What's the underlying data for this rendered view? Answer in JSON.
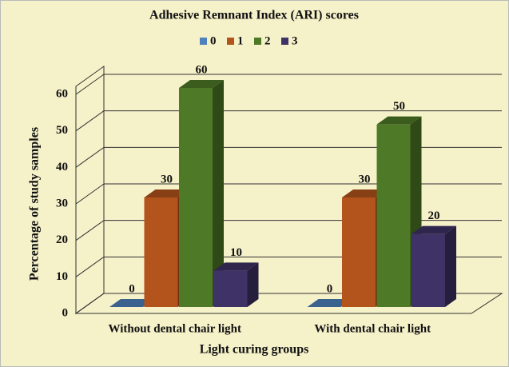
{
  "chart_data": {
    "type": "bar3d",
    "title": "Adhesive Remnant Index (ARI) scores",
    "x_label": "Light curing groups",
    "y_label": "Percentage of study samples",
    "categories": [
      "Without dental chair light",
      "With dental chair light"
    ],
    "series": [
      {
        "name": "0",
        "color": "#4f81bd",
        "values": [
          0,
          0
        ]
      },
      {
        "name": "1",
        "color": "#b4541d",
        "values": [
          30,
          30
        ]
      },
      {
        "name": "2",
        "color": "#4e7a27",
        "values": [
          60,
          50
        ]
      },
      {
        "name": "3",
        "color": "#3e3266",
        "values": [
          10,
          20
        ]
      }
    ],
    "ylim": [
      0,
      60
    ],
    "yticks": [
      0,
      10,
      20,
      30,
      40,
      50,
      60
    ],
    "grid": true,
    "legend": "top"
  }
}
